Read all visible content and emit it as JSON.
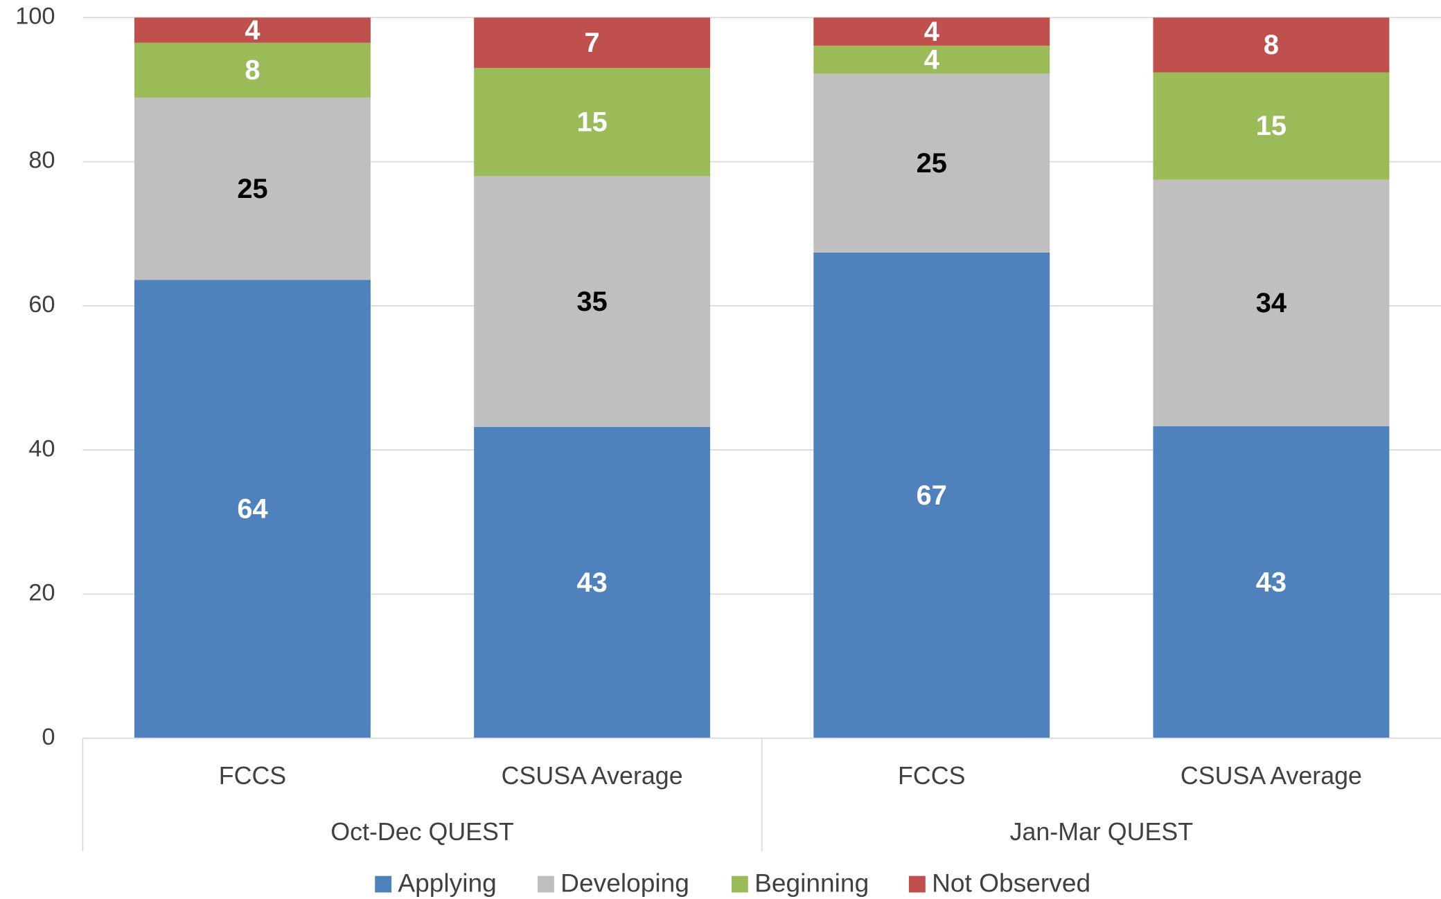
{
  "chart_data": {
    "type": "stacked_bar",
    "categories": [
      "FCCS",
      "CSUSA Average",
      "FCCS",
      "CSUSA Average"
    ],
    "groups": [
      "Oct-Dec QUEST",
      "Jan-Mar QUEST"
    ],
    "series": [
      {
        "name": "Applying",
        "color": "#4f81bd",
        "label_color": "#ffffff",
        "values": [
          63.6,
          43.2,
          67.4,
          43.3
        ],
        "value_labels": [
          "64",
          "43",
          "67",
          "43"
        ]
      },
      {
        "name": "Developing",
        "color": "#bfbfbf",
        "label_color": "#000000",
        "values": [
          25.3,
          34.8,
          24.8,
          34.2
        ],
        "value_labels": [
          "25",
          "35",
          "25",
          "34"
        ]
      },
      {
        "name": "Beginning",
        "color": "#9bbb59",
        "label_color": "#ffffff",
        "values": [
          7.6,
          15.0,
          3.9,
          14.9
        ],
        "value_labels": [
          "8",
          "15",
          "4",
          "15"
        ]
      },
      {
        "name": "Not Observed",
        "color": "#c0504d",
        "label_color": "#ffffff",
        "values": [
          3.5,
          7.0,
          3.9,
          7.6
        ],
        "value_labels": [
          "4",
          "7",
          "4",
          "8"
        ]
      }
    ],
    "ylim": [
      0,
      100
    ],
    "yticks": [
      0,
      20,
      40,
      60,
      80,
      100
    ],
    "grid": true,
    "legend": "bottom"
  }
}
